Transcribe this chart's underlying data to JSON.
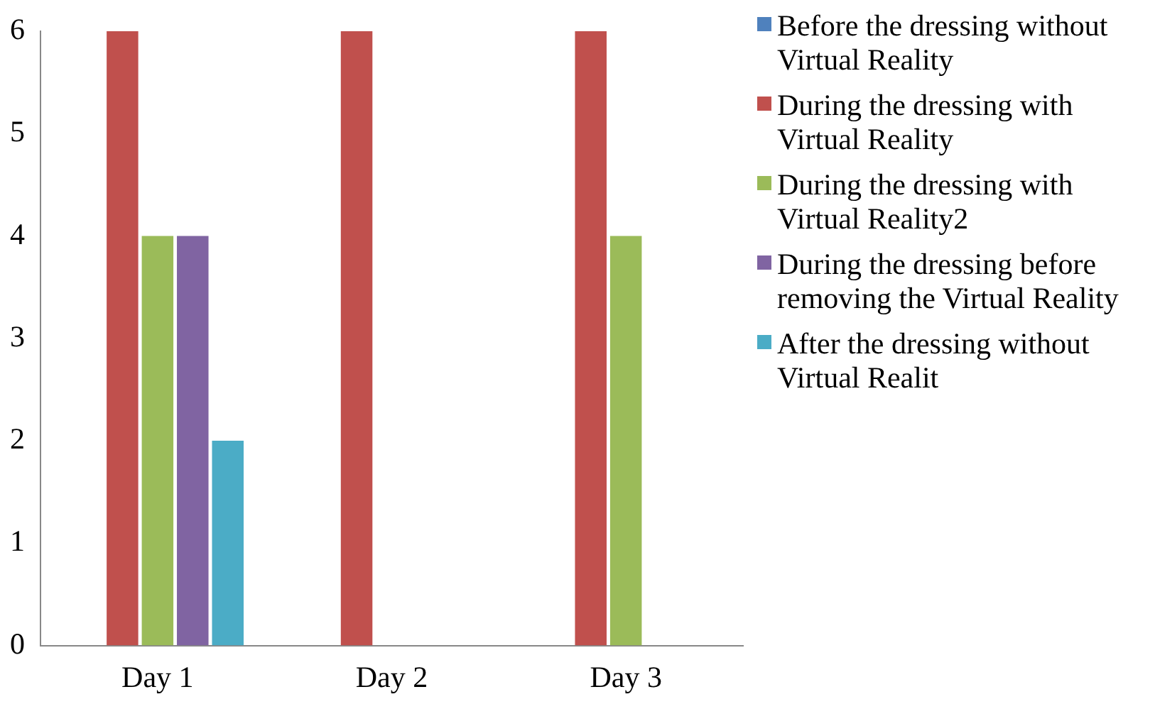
{
  "chart_data": {
    "type": "bar",
    "categories": [
      "Day 1",
      "Day 2",
      "Day 3"
    ],
    "series": [
      {
        "name": "Before the dressing without Virtual Reality",
        "color": "#4f81bd",
        "values": [
          0,
          0,
          0
        ]
      },
      {
        "name": "During the dressing with Virtual Reality",
        "color": "#c0504d",
        "values": [
          6,
          6,
          6
        ]
      },
      {
        "name": "During the dressing with Virtual Reality2",
        "color": "#9bbb59",
        "values": [
          4,
          0,
          4
        ]
      },
      {
        "name": "During the dressing before removing the Virtual Reality",
        "color": "#8064a2",
        "values": [
          4,
          0,
          0
        ]
      },
      {
        "name": "After the dressing without Virtual Realit",
        "color": "#4bacc6",
        "values": [
          2,
          0,
          0
        ]
      }
    ],
    "ylim": [
      0,
      6
    ],
    "yticks": [
      0,
      1,
      2,
      3,
      4,
      5,
      6
    ],
    "grid": false,
    "legend": "right"
  }
}
